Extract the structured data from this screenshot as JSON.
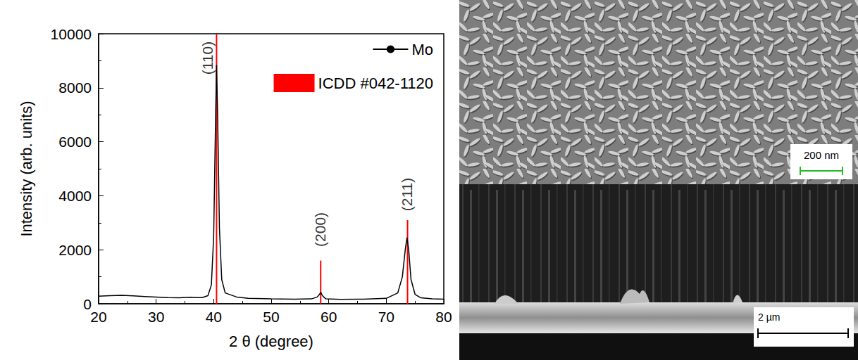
{
  "chart_data": {
    "type": "line",
    "x_label": "2 θ (degree)",
    "y_label": "Intensity (arb. units)",
    "xlim": [
      20,
      80
    ],
    "xticks": [
      20,
      30,
      40,
      50,
      60,
      70,
      80
    ],
    "ylim": [
      0,
      10000
    ],
    "yticks": [
      0,
      2000,
      4000,
      6000,
      8000,
      10000
    ],
    "legend": "top-right",
    "series": [
      {
        "name": "Mo",
        "type": "line",
        "color": "#000000",
        "x": [
          20,
          22,
          24,
          26,
          28,
          30,
          32,
          34,
          36,
          37,
          38,
          39,
          39.6,
          40,
          40.3,
          40.5,
          40.7,
          41,
          41.4,
          42,
          44,
          46,
          50,
          54,
          57,
          58,
          58.4,
          58.6,
          58.9,
          59.5,
          62,
          66,
          70,
          72,
          72.8,
          73.3,
          73.6,
          73.9,
          74.3,
          75,
          76,
          78,
          80
        ],
        "values": [
          280,
          300,
          310,
          290,
          270,
          250,
          230,
          220,
          240,
          230,
          230,
          300,
          700,
          2500,
          6500,
          8850,
          6800,
          2800,
          900,
          400,
          250,
          200,
          180,
          170,
          180,
          250,
          350,
          430,
          300,
          180,
          160,
          170,
          200,
          400,
          1000,
          2000,
          2450,
          2000,
          900,
          350,
          220,
          180,
          170
        ]
      },
      {
        "name": "ICDD #042-1120",
        "type": "bar",
        "color": "#ff0000",
        "x": [
          40.5,
          58.6,
          73.7
        ],
        "values": [
          10000,
          1600,
          3100
        ]
      }
    ],
    "annotations": [
      {
        "text": "(110)",
        "x": 38.9,
        "y": 9100
      },
      {
        "text": "(200)",
        "x": 58.5,
        "y": 2750
      },
      {
        "text": "(211)",
        "x": 73.6,
        "y": 4050
      }
    ]
  },
  "images": [
    {
      "scale_bar": "200 nm"
    },
    {
      "scale_bar": "2 µm"
    }
  ]
}
